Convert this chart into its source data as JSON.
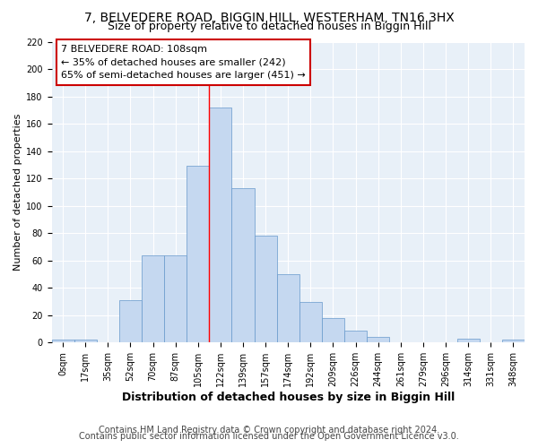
{
  "title": "7, BELVEDERE ROAD, BIGGIN HILL, WESTERHAM, TN16 3HX",
  "subtitle": "Size of property relative to detached houses in Biggin Hill",
  "xlabel": "Distribution of detached houses by size in Biggin Hill",
  "ylabel": "Number of detached properties",
  "bin_labels": [
    "0sqm",
    "17sqm",
    "35sqm",
    "52sqm",
    "70sqm",
    "87sqm",
    "105sqm",
    "122sqm",
    "139sqm",
    "157sqm",
    "174sqm",
    "192sqm",
    "209sqm",
    "226sqm",
    "244sqm",
    "261sqm",
    "279sqm",
    "296sqm",
    "314sqm",
    "331sqm",
    "348sqm"
  ],
  "bar_heights": [
    2,
    2,
    0,
    31,
    64,
    64,
    129,
    172,
    113,
    78,
    50,
    30,
    18,
    9,
    4,
    0,
    0,
    0,
    3,
    0,
    2
  ],
  "bar_color": "#c5d8f0",
  "bar_edge_color": "#6699cc",
  "red_line_x": 6.5,
  "annotation_line1": "7 BELVEDERE ROAD: 108sqm",
  "annotation_line2": "← 35% of detached houses are smaller (242)",
  "annotation_line3": "65% of semi-detached houses are larger (451) →",
  "annotation_box_color": "#ffffff",
  "annotation_box_edge_color": "#cc0000",
  "ylim": [
    0,
    220
  ],
  "yticks": [
    0,
    20,
    40,
    60,
    80,
    100,
    120,
    140,
    160,
    180,
    200,
    220
  ],
  "footer_line1": "Contains HM Land Registry data © Crown copyright and database right 2024.",
  "footer_line2": "Contains public sector information licensed under the Open Government Licence v3.0.",
  "fig_bg_color": "#ffffff",
  "plot_bg_color": "#e8f0f8",
  "grid_color": "#ffffff",
  "title_fontsize": 10,
  "subtitle_fontsize": 9,
  "xlabel_fontsize": 9,
  "ylabel_fontsize": 8,
  "tick_fontsize": 7,
  "annotation_fontsize": 8,
  "footer_fontsize": 7
}
